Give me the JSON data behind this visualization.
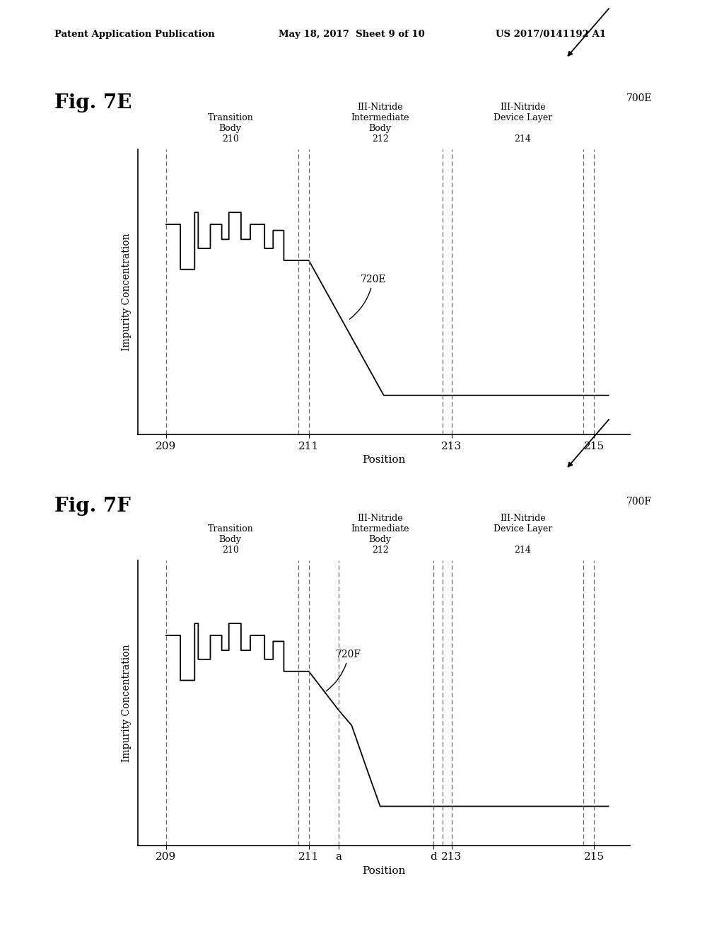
{
  "header_left": "Patent Application Publication",
  "header_mid": "May 18, 2017  Sheet 9 of 10",
  "header_right": "US 2017/0141192 A1",
  "fig7e_title": "Fig. 7E",
  "fig7f_title": "Fig. 7F",
  "label_700E": "700E",
  "label_700F": "700F",
  "label_ylabel": "Impurity Concentration",
  "label_xlabel": "Position",
  "fig7e_signal_x": [
    209.0,
    209.2,
    209.2,
    209.4,
    209.4,
    209.45,
    209.45,
    209.62,
    209.62,
    209.78,
    209.78,
    209.88,
    209.88,
    210.05,
    210.05,
    210.18,
    210.18,
    210.38,
    210.38,
    210.5,
    210.5,
    210.65,
    210.65,
    211.0,
    211.0,
    212.05,
    212.05,
    215.2
  ],
  "fig7e_signal_y": [
    0.7,
    0.7,
    0.55,
    0.55,
    0.74,
    0.74,
    0.62,
    0.62,
    0.7,
    0.7,
    0.65,
    0.65,
    0.74,
    0.74,
    0.65,
    0.65,
    0.7,
    0.7,
    0.62,
    0.62,
    0.68,
    0.68,
    0.58,
    0.58,
    0.58,
    0.13,
    0.13,
    0.13
  ],
  "fig7f_signal_x": [
    209.0,
    209.2,
    209.2,
    209.4,
    209.4,
    209.45,
    209.45,
    209.62,
    209.62,
    209.78,
    209.78,
    209.88,
    209.88,
    210.05,
    210.05,
    210.18,
    210.18,
    210.38,
    210.38,
    210.5,
    210.5,
    210.65,
    210.65,
    211.0,
    211.0,
    211.42,
    211.42,
    211.6,
    211.6,
    211.82,
    211.82,
    212.0,
    212.0,
    212.75,
    212.75,
    215.2
  ],
  "fig7f_signal_y": [
    0.7,
    0.7,
    0.55,
    0.55,
    0.74,
    0.74,
    0.62,
    0.62,
    0.7,
    0.7,
    0.65,
    0.65,
    0.74,
    0.74,
    0.65,
    0.65,
    0.7,
    0.7,
    0.62,
    0.62,
    0.68,
    0.68,
    0.58,
    0.58,
    0.58,
    0.45,
    0.45,
    0.4,
    0.4,
    0.25,
    0.25,
    0.13,
    0.13,
    0.13,
    0.13,
    0.13
  ],
  "xlim": [
    208.6,
    215.5
  ],
  "ylim": [
    0.0,
    0.95
  ],
  "bg_color": "#ffffff",
  "line_color": "#000000",
  "dashed_color": "#666666",
  "region_vlines_7e": [
    209.0,
    210.85,
    211.0,
    212.88,
    213.0,
    214.85,
    215.0
  ],
  "region_vlines_7f": [
    209.0,
    210.85,
    211.0,
    211.42,
    212.75,
    212.88,
    213.0,
    214.85,
    215.0
  ],
  "xticks_7e_pos": [
    209,
    211,
    213,
    215
  ],
  "xticks_7e_labels": [
    "209",
    "211",
    "213",
    "215"
  ],
  "xticks_7f_pos": [
    209,
    211,
    211.42,
    212.75,
    213,
    215
  ],
  "xticks_7f_labels": [
    "209",
    "211",
    "a",
    "d",
    "213",
    "215"
  ]
}
